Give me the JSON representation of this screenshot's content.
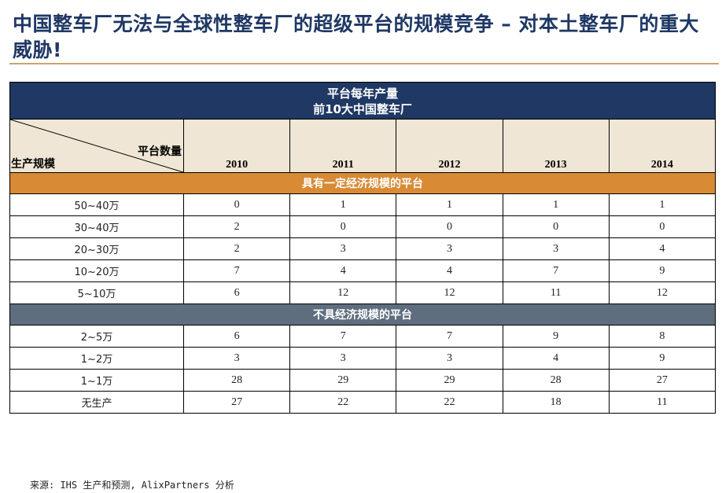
{
  "title": "中国整车厂无法与全球性整车厂的超级平台的规模竞争 – 对本土整车厂的重大威胁!",
  "chart_data": {
    "type": "table",
    "header_line1": "平台每年产量",
    "header_line2": "前10大中国整车厂",
    "corner_top": "平台数量",
    "corner_bottom": "生产规模",
    "years": [
      "2010",
      "2011",
      "2012",
      "2013",
      "2014"
    ],
    "sections": [
      {
        "label": "具有一定经济规模的平台",
        "color": "#d88a34",
        "rows": [
          {
            "label": "50~40万",
            "values": [
              0,
              1,
              1,
              1,
              1
            ]
          },
          {
            "label": "30~40万",
            "values": [
              2,
              0,
              0,
              0,
              0
            ]
          },
          {
            "label": "20~30万",
            "values": [
              2,
              3,
              3,
              3,
              4
            ]
          },
          {
            "label": "10~20万",
            "values": [
              7,
              4,
              4,
              7,
              9
            ]
          },
          {
            "label": "5~10万",
            "values": [
              6,
              12,
              12,
              11,
              12
            ]
          }
        ]
      },
      {
        "label": "不具经济规模的平台",
        "color": "#5e6e7e",
        "rows": [
          {
            "label": "2~5万",
            "values": [
              6,
              7,
              7,
              9,
              8
            ]
          },
          {
            "label": "1~2万",
            "values": [
              3,
              3,
              3,
              4,
              9
            ]
          },
          {
            "label": "1~1万",
            "values": [
              28,
              29,
              29,
              28,
              27
            ]
          },
          {
            "label": "无生产",
            "values": [
              27,
              22,
              22,
              18,
              11
            ]
          }
        ]
      }
    ]
  },
  "source": "来源: IHS 生产和预测, AlixPartners 分析",
  "colors": {
    "title": "#1f3864",
    "header": "#1f3864",
    "rule": "#c8a66a",
    "colhead": "#efe6d5"
  }
}
